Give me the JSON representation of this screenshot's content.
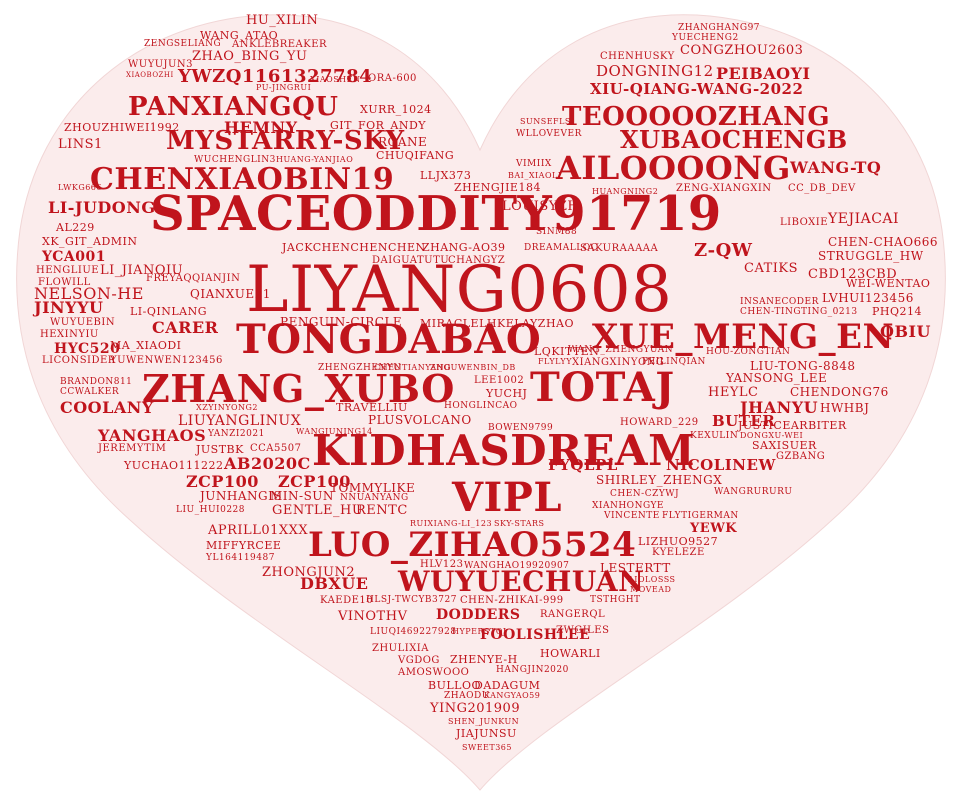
{
  "colors": {
    "text": "#c0141c",
    "heart_fill": "#fbecec",
    "background": "#ffffff"
  },
  "words": {
    "liyang0608": "LIYANG0608",
    "spaceoddity91719": "SPACEODDITY91719",
    "tongdabao": "TONGDABAO",
    "xue_meng_en": "XUE_MENG_EN",
    "zhang_xubo": "ZHANG_XUBO",
    "totaj": "TOTAJ",
    "kidhasdream": "KIDHASDREAM",
    "vipl": "VIPL",
    "luo_zihao5524": "LUO_ZIHAO5524",
    "wuyuechuan": "WUYUECHUAN",
    "chenxiaobin19": "CHENXIAOBIN19",
    "ailooooong": "AILOOOONG",
    "teoooooozhang": "TEOOOOOZHANG",
    "xubaochengb": "XUBAOCHENGB",
    "mystarry_sky": "MYSTARRY-SKY",
    "panxiangqu": "PANXIANGQU",
    "hu_xilin": "HU_XILIN",
    "wang_atao": "WANG_ATAO",
    "zhao_bing_yu": "ZHAO_BING_YU",
    "ywzq1161327784": "YWZQ1161327784",
    "hemny": "HEMNY",
    "xiu_qiang_wang_2022": "XIU-QIANG-WANG-2022",
    "dongning12": "DONGNING12",
    "peibaoyi": "PEIBAOYI",
    "congzhou2603": "CONGZHOU2603",
    "zhanghang97": "ZHANGHANG97",
    "li_judong": "LI-JUDONG",
    "z_qw": "Z-QW",
    "wang_tq": "WANG-TQ",
    "cbd123cbd": "CBD123CBD",
    "catiks": "CATIKS",
    "carer": "CARER",
    "coolany": "COOLANY",
    "yanghaos": "YANGHAOS",
    "jinyyu": "JINYYU",
    "nelson_he": "NELSON-HE",
    "hyc520": "HYC520",
    "zhengjun2": "ZHONGJUN2",
    "dbxue": "DBXUE",
    "vinothv": "VINOTHV",
    "dodders": "DODDERS",
    "foolishlee": "FOOLISHLEE",
    "ying201909": "YING201909",
    "zcp100": "ZCP100",
    "zcp100b": "ZCP100",
    "gentle_hu": "GENTLE_HU",
    "rentc": "RENTC",
    "nicolinew": "NICOLINEW",
    "jhanyu": "JHANYU",
    "buter": "BUTER",
    "hwhbj": "HWHBJ",
    "yewk": "YEWK",
    "ab2020c": "AB2020C",
    "liuyanglinux": "LIUYANGLINUX",
    "plusvolcano": "PLUSVOLCANO",
    "travelliu": "TRAVELLIU",
    "fyqlpl": "FYQLPL",
    "shirley_zhengx": "SHIRLEY_ZHENGX",
    "lizhuo9527": "LIZHUO9527",
    "kyeleze": "KYELEZE",
    "lestertt": "LESTERTT",
    "penguin_circle": "PENGUIN-CIRCLE",
    "miraclelhkelayzhao": "MIRACLELHKELAYZHAO",
    "freyaqqianjin": "FREYAQQIANJIN",
    "qianxue21": "QIANXUE21",
    "lvhui123456": "LVHUI123456",
    "struggle_hw": "STRUGGLE_HW",
    "chen_chao666": "CHEN-CHAO666",
    "liu_tong_8848": "LIU-TONG-8848",
    "yansong_lee": "YANSONG_LEE",
    "heylc": "HEYLC",
    "chendong76": "CHENDONG76",
    "qbiu": "QBIU",
    "zhulixia": "ZHULIXIA",
    "vgdog": "VGDOG",
    "zhenye_h": "ZHENYE-H",
    "howarli": "HOWARLI",
    "amoswooo": "AMOSWOOO",
    "bulloo": "BULLOO",
    "dadagum": "DADAGUM",
    "jiajunsu": "JIAJUNSU",
    "shen_junkun": "SHEN_JUNKUN",
    "sweet365": "SWEET365",
    "junhangis": "JUNHANGIS",
    "min_sun": "MIN-SUN",
    "miffyrcee": "MIFFYRCEE",
    "april01xxx": "APRILL01XXX",
    "yl164119487": "YL164119487",
    "liu_hui0228": "LIU_HUI0228",
    "yuchao111222": "YUCHAO111222",
    "jeremytim": "JEREMYTIM",
    "justbk": "JUSTBK",
    "ccwalker": "CCWALKER",
    "brandon811": "BRANDON811",
    "li_jianqiu": "LI_JIANQIU",
    "li_qinlang": "LI-QINLANG",
    "dongning_xl": "CHENHUSKY",
    "xiaobozhi": "XIAOBOZHI",
    "zengseliang": "ZENGSELIANG",
    "anklebreaker": "ANKLEBREAKER",
    "wuyujun3": "WUYUJUN3",
    "zhouzhiwei1992": "ZHOUZHIWEI1992",
    "lins1": "LINS1",
    "git_for_andy": "GIT_FOR_ANDY",
    "xurr_1024": "XURR_1024",
    "roane": "ROANE",
    "chuqifang": "CHUQIFANG",
    "wuchenglin3": "WUCHENGLIN3",
    "lljx373": "LLJX373",
    "zhengjie184": "ZHENGJIE184",
    "louisyzh": "LOUISYZH",
    "sunsefls": "SUNSEFLS",
    "wllovever": "WLLOVEVER",
    "vimiix": "VIMIIX",
    "huangning2": "HUANGNING2",
    "zeng_xiangxin": "ZENG-XIANGXIN",
    "cc_db_dev": "CC_DB_DEV",
    "yejiacai": "YEJIACAI",
    "liboxie": "LIBOXIE",
    "wei_wentao": "WEI-WENTAO",
    "insanecoder": "INSANECODER",
    "chen_tingting_0213": "CHEN-TINGTING_0213",
    "phq214": "PHQ214",
    "jackchenchenchen": "JACKCHENCHENCHEN",
    "zhang_ao39": "ZHANG-AO39",
    "daiguatutu": "DAIGUATUTU",
    "changyz": "CHANGYZ",
    "dreammalloc": "DREAMALLOC",
    "sakuraaaa": "SAKURAAAAA",
    "lqkitten": "LQKITTEN",
    "xiangxinyong": "XIANGXINYONG",
    "peilinqian": "PEILINQIAN",
    "hou_zongtian": "HOU-ZONGTIAN",
    "wang_zhengyuan": "WANG_ZHENGYUAN",
    "lee1002": "LEE1002",
    "yuchj": "YUCHJ",
    "honglincao": "HONGLINCAO",
    "bowen9799": "BOWEN9799",
    "howard_229": "HOWARD_229",
    "justicearbiter": "JUSTICEARBITER",
    "saxisuer": "SAXISUER",
    "gzbang": "GZBANG",
    "wangrururu": "WANGRURURU",
    "chen_czywj": "CHEN-CZYWJ",
    "xianhongye": "XIANHONGYE",
    "vincente": "VINCENTE",
    "flytigerman": "FLYTIGERMAN",
    "ruixiang_li_123": "RUIXIANG-LI_123",
    "sky_stars": "SKY-STARS",
    "hlv123": "HLV123",
    "wanghao19920907": "WANGHAO19920907",
    "chen_zhikai_999": "CHEN-ZHIKAI-999",
    "rangerql": "RANGERQL",
    "zwgiles": "ZWGILES",
    "hangjin2020": "HANGJIN2020",
    "zhaodu": "ZHAODU",
    "kangyao59": "KANGYAO59",
    "tommylike": "TOMMYLIKE",
    "nnuanyang": "NNUANYANG",
    "kaede10": "KAEDE10",
    "hlsj_twcyb3727": "HLSJ-TWCYB3727",
    "liuqi469227928": "LIUQI469227928",
    "hyperstoj": "HYPERSTOJ",
    "aiolossss": "AIOLOSSS",
    "movead": "MOVEAD",
    "tsthght": "TSTHGHT",
    "yuechengyi": "YUECHENG2",
    "wangrmj": "XIAOSHEN",
    "ora_600": "ORA-600",
    "huang_yanjiao": "HUANG-YANJIAO",
    "pu_jingrui": "PU-JINGRUI",
    "bai_xiaoli": "BAI_XIAOLI",
    "sinm88": "SINM88",
    "dongxu_wei": "DONGXU-WEI",
    "kexulin": "KEXULIN",
    "lwkg66": "LWKG666",
    "yca001": "YCA001",
    "hengliue": "HENGLIUE",
    "flowill": "FLOWILL",
    "al229": "AL229",
    "xk_git_admin": "XK_GIT_ADMIN",
    "wuyuebin": "WUYUEBIN",
    "hexinyiu": "HEXINYIU",
    "licensider": "LICONSIDER",
    "yuwenwen123456": "YUWENWEN123456",
    "xzyinyong2": "XZYINYONG2",
    "yanzi2021": "YANZI2021",
    "cca5507": "CCA5507",
    "wangjuning14": "WANGJUNING14",
    "ma_xiaodi": "MA_XIAODI",
    "zhengzhenyu": "ZHENGZHENYU",
    "chentianyang": "CHENTIANYANG",
    "zhouwenbin_db": "ZHOUWENBIN_DB",
    "flylyy": "FLYLYY"
  }
}
